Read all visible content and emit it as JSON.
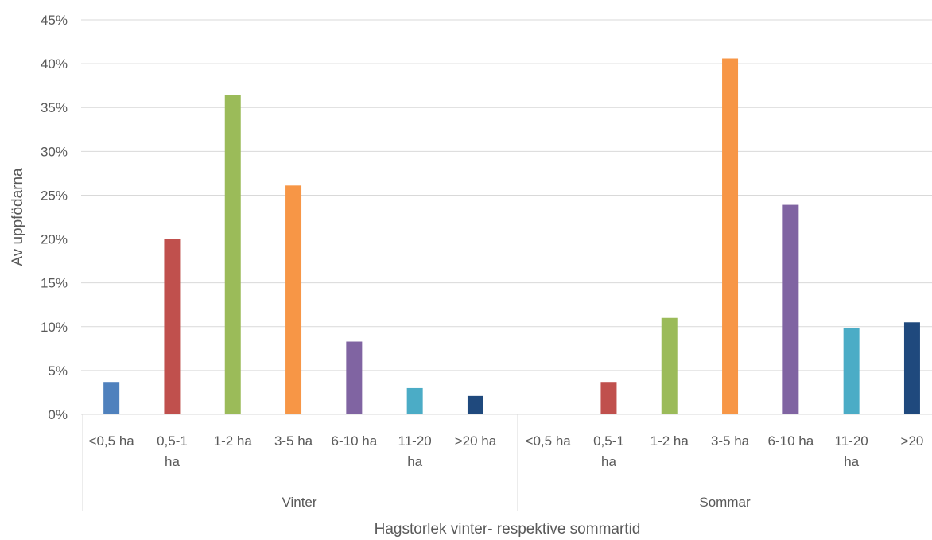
{
  "chart_data": {
    "type": "bar",
    "title": "",
    "xlabel": "Hagstorlek vinter- respektive sommartid",
    "ylabel": "Av uppfödarna",
    "ylim": [
      0,
      45
    ],
    "yticks": [
      "0%",
      "5%",
      "10%",
      "15%",
      "20%",
      "25%",
      "30%",
      "35%",
      "40%",
      "45%"
    ],
    "grid": true,
    "legend": "none",
    "groups": [
      {
        "name": "Vinter",
        "categories": [
          {
            "lines": [
              "<0,5 ha"
            ],
            "value": 3.7,
            "color": "#4F81BD"
          },
          {
            "lines": [
              "0,5-1",
              "ha"
            ],
            "value": 20.0,
            "color": "#C0504D"
          },
          {
            "lines": [
              "1-2 ha"
            ],
            "value": 36.4,
            "color": "#9BBB59"
          },
          {
            "lines": [
              "3-5 ha"
            ],
            "value": 26.1,
            "color": "#F79646"
          },
          {
            "lines": [
              "6-10 ha"
            ],
            "value": 8.3,
            "color": "#8064A2"
          },
          {
            "lines": [
              "11-20",
              "ha"
            ],
            "value": 3.0,
            "color": "#4BACC6"
          },
          {
            "lines": [
              ">20 ha"
            ],
            "value": 2.1,
            "color": "#1F497D"
          }
        ]
      },
      {
        "name": "Sommar",
        "categories": [
          {
            "lines": [
              "<0,5 ha"
            ],
            "value": 0,
            "color": "#4F81BD"
          },
          {
            "lines": [
              "0,5-1",
              "ha"
            ],
            "value": 3.7,
            "color": "#C0504D"
          },
          {
            "lines": [
              "1-2 ha"
            ],
            "value": 11.0,
            "color": "#9BBB59"
          },
          {
            "lines": [
              "3-5 ha"
            ],
            "value": 40.6,
            "color": "#F79646"
          },
          {
            "lines": [
              "6-10 ha"
            ],
            "value": 23.9,
            "color": "#8064A2"
          },
          {
            "lines": [
              "11-20",
              "ha"
            ],
            "value": 9.8,
            "color": "#4BACC6"
          },
          {
            "lines": [
              ">20"
            ],
            "value": 10.5,
            "color": "#1F497D"
          }
        ]
      }
    ]
  }
}
